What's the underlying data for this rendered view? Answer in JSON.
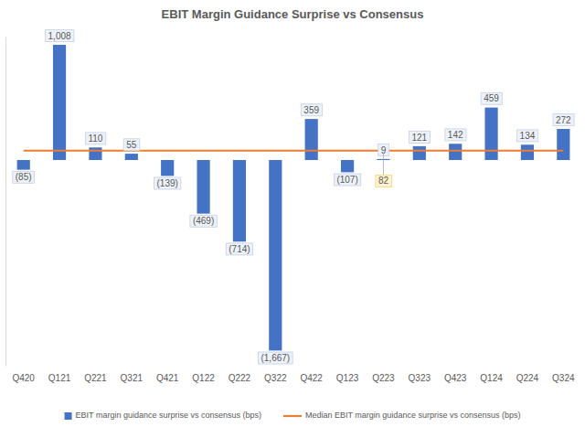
{
  "chart_data": {
    "type": "bar",
    "title": "EBIT Margin Guidance Surprise vs Consensus",
    "categories": [
      "Q420",
      "Q121",
      "Q221",
      "Q321",
      "Q421",
      "Q122",
      "Q222",
      "Q322",
      "Q422",
      "Q123",
      "Q223",
      "Q323",
      "Q423",
      "Q124",
      "Q224",
      "Q324"
    ],
    "series": [
      {
        "name": "EBIT margin guidance surprise vs consensus (bps)",
        "type": "bar",
        "color": "#4472c4",
        "values": [
          -85,
          1008,
          110,
          55,
          -139,
          -469,
          -714,
          -1667,
          359,
          -107,
          9,
          121,
          142,
          459,
          134,
          272
        ],
        "value_labels": [
          "(85)",
          "1,008",
          "110",
          "55",
          "(139)",
          "(469)",
          "(714)",
          "(1,667)",
          "359",
          "(107)",
          "9",
          "121",
          "142",
          "459",
          "134",
          "272"
        ]
      },
      {
        "name": "Median EBIT margin guidance surprise vs consensus (bps)",
        "type": "line",
        "color": "#ed7d31",
        "values": [
          82,
          82,
          82,
          82,
          82,
          82,
          82,
          82,
          82,
          82,
          82,
          82,
          82,
          82,
          82,
          82
        ],
        "value_labels": [
          null,
          null,
          null,
          null,
          null,
          null,
          null,
          null,
          null,
          null,
          "82",
          null,
          null,
          null,
          null,
          null
        ]
      }
    ],
    "ylim": [
      -1800,
      1080
    ],
    "data_labels": true,
    "tick_labels": "x",
    "legend": "bottom",
    "grid": false
  }
}
